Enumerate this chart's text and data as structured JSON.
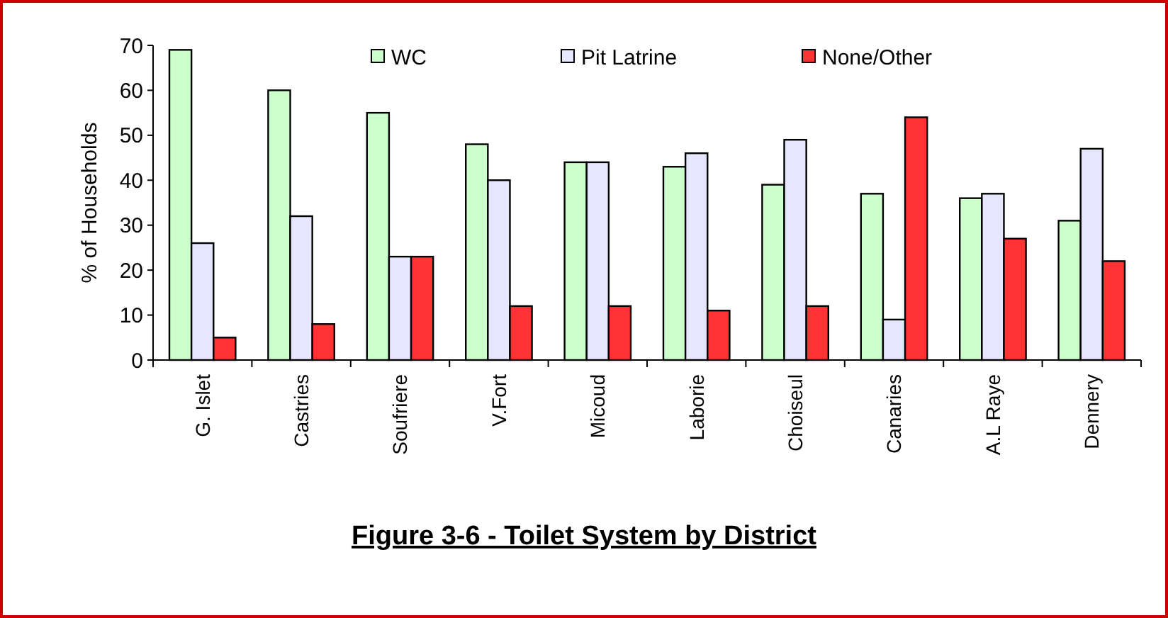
{
  "chart_data": {
    "type": "bar",
    "title": "Figure 3-6 - Toilet System by District",
    "ylabel": "% of Households",
    "categories": [
      "G. Islet",
      "Castries",
      "Soufriere",
      "V.Fort",
      "Micoud",
      "Laborie",
      "Choiseul",
      "Canaries",
      "A.L Raye",
      "Dennery"
    ],
    "series": [
      {
        "name": "WC",
        "color": "#ccffcc",
        "values": [
          69,
          60,
          55,
          48,
          44,
          43,
          39,
          37,
          36,
          31
        ]
      },
      {
        "name": "Pit Latrine",
        "color": "#e6e6ff",
        "values": [
          26,
          32,
          23,
          40,
          44,
          46,
          49,
          9,
          37,
          47
        ]
      },
      {
        "name": "None/Other",
        "color": "#ff3333",
        "values": [
          5,
          8,
          23,
          12,
          12,
          11,
          12,
          54,
          27,
          22
        ]
      }
    ],
    "ylim": [
      0,
      70
    ],
    "yticks": [
      0,
      10,
      20,
      30,
      40,
      50,
      60,
      70
    ],
    "grid": false,
    "legend": "top"
  }
}
